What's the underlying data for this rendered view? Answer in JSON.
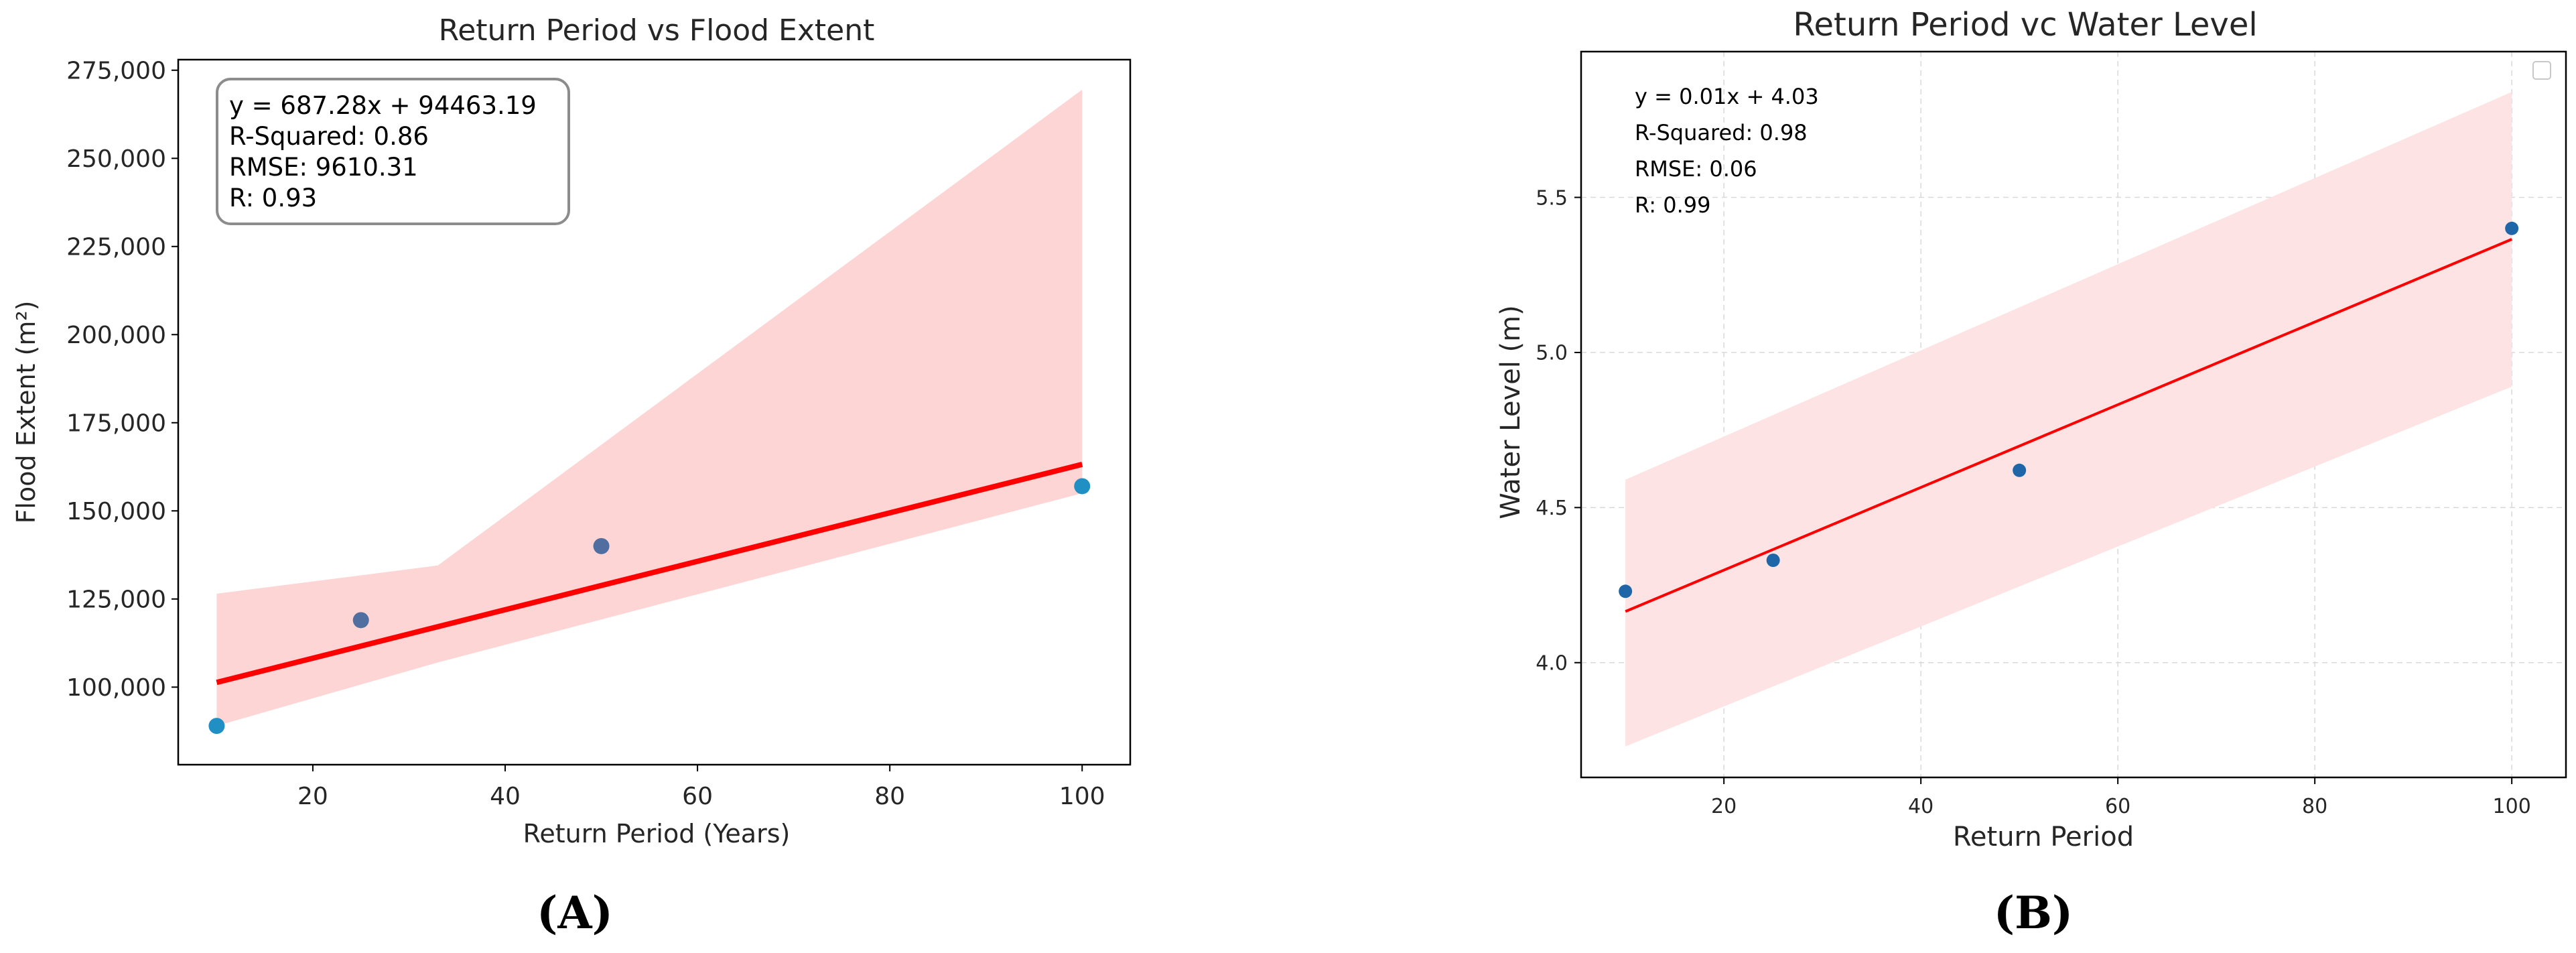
{
  "chart_data": [
    {
      "panel": "(A)",
      "type": "scatter",
      "title": "Return Period vs Flood Extent",
      "xlabel": "Return Period (Years)",
      "ylabel": "Flood Extent (m²)",
      "xlim": [
        6,
        105
      ],
      "ylim": [
        78000,
        278000
      ],
      "xticks": [
        20,
        40,
        60,
        80,
        100
      ],
      "yticks": [
        100000,
        125000,
        150000,
        175000,
        200000,
        225000,
        250000,
        275000
      ],
      "ytick_labels": [
        "100,000",
        "125,000",
        "150,000",
        "175,000",
        "200,000",
        "225,000",
        "250,000",
        "275,000"
      ],
      "points": [
        {
          "x": 10,
          "y": 89000
        },
        {
          "x": 25,
          "y": 119000
        },
        {
          "x": 50,
          "y": 140000
        },
        {
          "x": 100,
          "y": 157000
        }
      ],
      "fit": {
        "slope": 687.28,
        "intercept": 94463.19,
        "color": "#ff0000"
      },
      "confidence_band": {
        "x": [
          10,
          33,
          100
        ],
        "upper": [
          126500,
          134500,
          269500
        ],
        "lower": [
          89000,
          107000,
          155000
        ],
        "color": "#fdd5d5"
      },
      "stats": [
        "y = 687.28x + 94463.19",
        "R-Squared: 0.86",
        "RMSE: 9610.31",
        "R: 0.93"
      ],
      "grid": false,
      "point_colors": [
        "#1f8fc4",
        "#506ea0",
        "#506ea0",
        "#1f8fc4"
      ]
    },
    {
      "panel": "(B)",
      "type": "scatter",
      "title": "Return Period vc Water Level",
      "xlabel": "Return Period",
      "ylabel": "Water Level (m)",
      "xlim": [
        5.5,
        105.5
      ],
      "ylim": [
        3.63,
        5.97
      ],
      "xticks": [
        20,
        40,
        60,
        80,
        100
      ],
      "yticks": [
        4.0,
        4.5,
        5.0,
        5.5
      ],
      "ytick_labels": [
        "4.0",
        "4.5",
        "5.0",
        "5.5"
      ],
      "points": [
        {
          "x": 10,
          "y": 4.23
        },
        {
          "x": 25,
          "y": 4.33
        },
        {
          "x": 50,
          "y": 4.62
        },
        {
          "x": 100,
          "y": 5.4
        }
      ],
      "fit": {
        "x": [
          10,
          100
        ],
        "y": [
          4.165,
          5.365
        ],
        "color": "#ff0000"
      },
      "confidence_band": {
        "x": [
          10,
          100
        ],
        "upper": [
          4.59,
          5.84
        ],
        "lower": [
          3.73,
          4.89
        ],
        "color": "#fde3e3"
      },
      "stats": [
        "y = 0.01x + 4.03",
        "R-Squared: 0.98",
        "RMSE: 0.06",
        "R: 0.99"
      ],
      "grid": true,
      "legend": "top-right",
      "point_colors": [
        "#1f66a8",
        "#1f66a8",
        "#1f66a8",
        "#1f66a8"
      ]
    }
  ]
}
